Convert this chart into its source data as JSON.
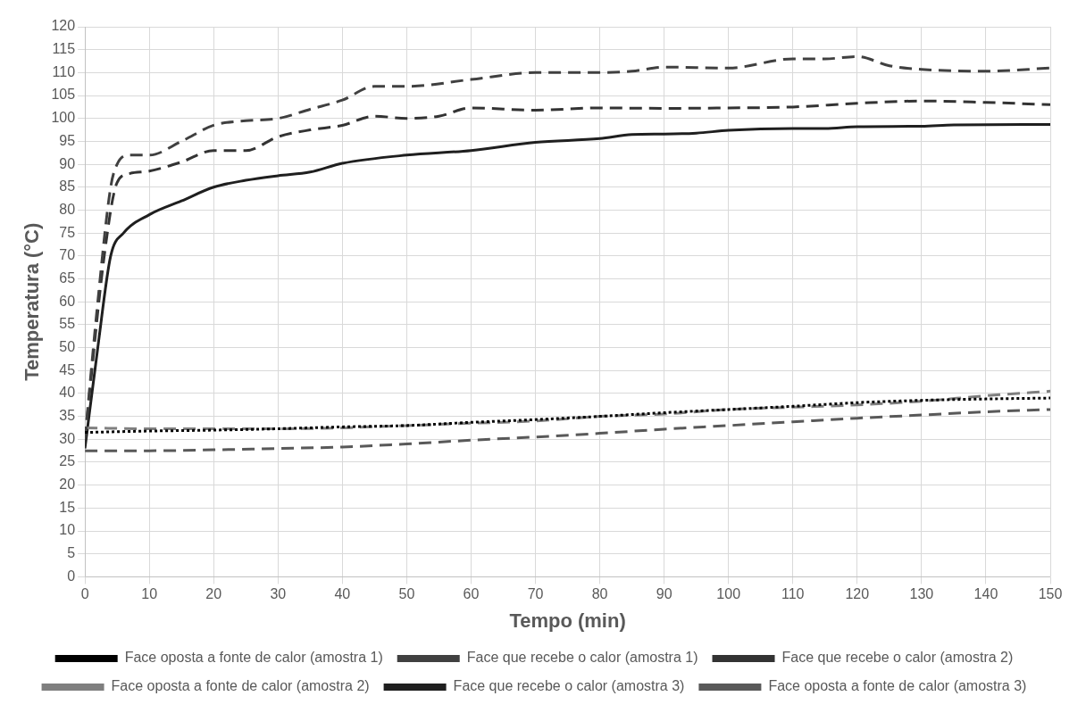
{
  "chart_data": {
    "type": "line",
    "xlabel": "Tempo (min)",
    "ylabel": "Temperatura (°C)",
    "xlim": [
      0,
      150
    ],
    "xticks": [
      0,
      10,
      20,
      30,
      40,
      50,
      60,
      70,
      80,
      90,
      100,
      110,
      120,
      130,
      140,
      150
    ],
    "ylim": [
      0,
      120
    ],
    "yticks": [
      0,
      5,
      10,
      15,
      20,
      25,
      30,
      35,
      40,
      45,
      50,
      55,
      60,
      65,
      70,
      75,
      80,
      85,
      90,
      95,
      100,
      105,
      110,
      115,
      120
    ],
    "grid": true,
    "legend": "bottom",
    "marker": "none",
    "series": [
      {
        "name": "Face oposta a fonte de calor (amostra 1)",
        "color": "#000000",
        "line_style": "dotted",
        "x": [
          0,
          10,
          20,
          30,
          40,
          50,
          60,
          70,
          80,
          90,
          100,
          110,
          120,
          130,
          140,
          150
        ],
        "values": [
          31.5,
          31.8,
          32,
          32.3,
          32.7,
          33,
          33.7,
          34.3,
          35,
          35.8,
          36.5,
          37.2,
          38,
          38.5,
          38.8,
          39
        ]
      },
      {
        "name": "Face que recebe o calor (amostra 1)",
        "color": "#404040",
        "line_style": "dashed",
        "x": [
          0,
          2,
          4,
          5,
          7,
          10,
          15,
          20,
          25,
          30,
          35,
          40,
          45,
          50,
          60,
          70,
          80,
          85,
          90,
          100,
          110,
          115,
          120,
          125,
          130,
          140,
          150
        ],
        "values": [
          30,
          60,
          85,
          90,
          92,
          92,
          95,
          98.5,
          99.5,
          100,
          102,
          104,
          107,
          107,
          108.5,
          110,
          110,
          110.3,
          111.2,
          111,
          113,
          113,
          113.5,
          111.5,
          110.7,
          110.3,
          111
        ]
      },
      {
        "name": "Face que recebe o calor (amostra 2)",
        "color": "#333333",
        "line_style": "dashed",
        "x": [
          0,
          3,
          5,
          7,
          10,
          15,
          20,
          25,
          30,
          35,
          40,
          45,
          50,
          55,
          60,
          70,
          80,
          90,
          100,
          110,
          120,
          130,
          140,
          150
        ],
        "values": [
          30,
          70,
          86,
          88,
          88.5,
          90.5,
          93,
          93,
          96,
          97.5,
          98.5,
          100.5,
          100,
          100.5,
          102.3,
          101.8,
          102.3,
          102.2,
          102.3,
          102.5,
          103.3,
          103.8,
          103.5,
          103
        ]
      },
      {
        "name": "Face oposta a fonte de calor (amostra 2)",
        "color": "#7f7f7f",
        "line_style": "dashed",
        "x": [
          0,
          10,
          20,
          30,
          40,
          50,
          60,
          70,
          80,
          90,
          100,
          110,
          120,
          130,
          140,
          150
        ],
        "values": [
          32.5,
          32.3,
          32.3,
          32.3,
          32.5,
          33,
          33.5,
          34,
          35,
          35.5,
          36.5,
          37,
          37.5,
          38.3,
          39.5,
          40.5
        ]
      },
      {
        "name": "Face que recebe o calor (amostra 3)",
        "color": "#1f1f1f",
        "line_style": "solid",
        "x": [
          0,
          2,
          4,
          6,
          10,
          15,
          20,
          25,
          30,
          35,
          40,
          50,
          60,
          70,
          80,
          85,
          90,
          95,
          100,
          110,
          115,
          120,
          130,
          135,
          150
        ],
        "values": [
          28,
          50,
          70,
          75,
          79,
          82,
          85,
          86.5,
          87.5,
          88.3,
          90.2,
          92,
          93,
          94.8,
          95.6,
          96.5,
          96.6,
          96.8,
          97.4,
          97.8,
          97.8,
          98.2,
          98.3,
          98.6,
          98.7
        ]
      },
      {
        "name": "Face oposta a fonte de calor (amostra 3)",
        "color": "#595959",
        "line_style": "dashed",
        "x": [
          0,
          10,
          20,
          30,
          40,
          50,
          60,
          70,
          80,
          90,
          100,
          110,
          120,
          130,
          140,
          150
        ],
        "values": [
          27.5,
          27.5,
          27.7,
          28,
          28.3,
          29,
          29.8,
          30.5,
          31.3,
          32.2,
          33,
          33.8,
          34.6,
          35.3,
          36,
          36.5
        ]
      }
    ]
  }
}
